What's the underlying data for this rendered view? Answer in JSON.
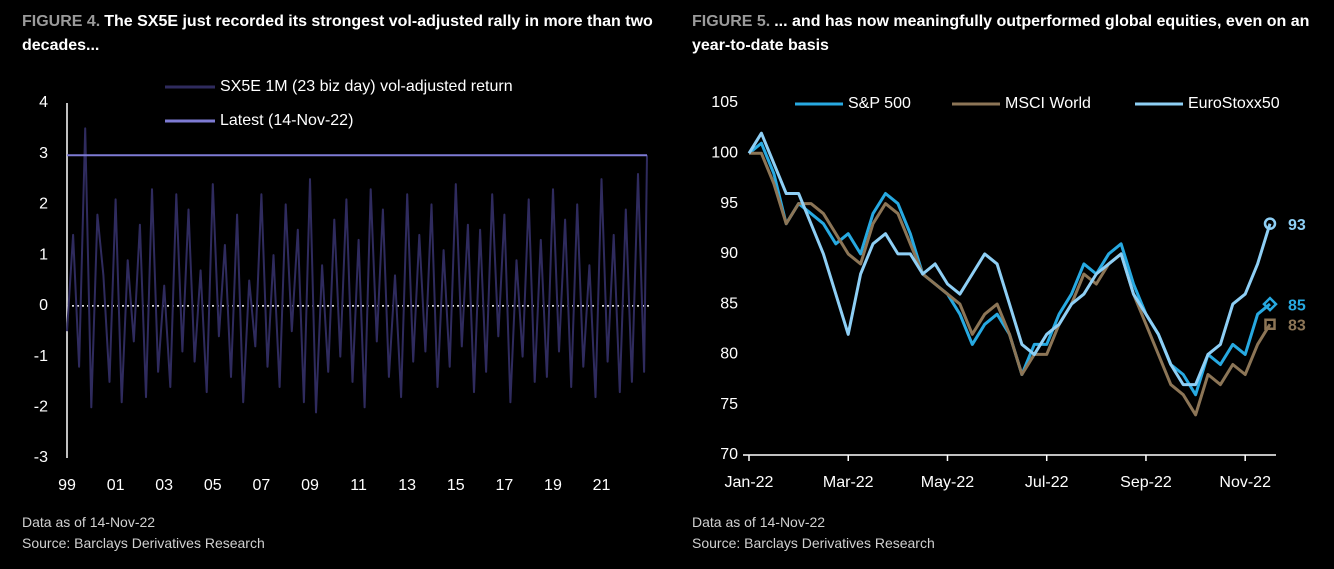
{
  "chart_data": [
    {
      "type": "line",
      "figure_label": "FIGURE 4.",
      "title": "The SX5E just recorded its strongest vol-adjusted rally in more than two decades...",
      "notes": [
        "Data as of 14-Nov-22",
        "Source: Barclays Derivatives Research"
      ],
      "x": [
        1999,
        1999.25,
        1999.5,
        1999.75,
        2000,
        2000.25,
        2000.5,
        2000.75,
        2001,
        2001.25,
        2001.5,
        2001.75,
        2002,
        2002.25,
        2002.5,
        2002.75,
        2003,
        2003.25,
        2003.5,
        2003.75,
        2004,
        2004.25,
        2004.5,
        2004.75,
        2005,
        2005.25,
        2005.5,
        2005.75,
        2006,
        2006.25,
        2006.5,
        2006.75,
        2007,
        2007.25,
        2007.5,
        2007.75,
        2008,
        2008.25,
        2008.5,
        2008.75,
        2009,
        2009.25,
        2009.5,
        2009.75,
        2010,
        2010.25,
        2010.5,
        2010.75,
        2011,
        2011.25,
        2011.5,
        2011.75,
        2012,
        2012.25,
        2012.5,
        2012.75,
        2013,
        2013.25,
        2013.5,
        2013.75,
        2014,
        2014.25,
        2014.5,
        2014.75,
        2015,
        2015.25,
        2015.5,
        2015.75,
        2016,
        2016.25,
        2016.5,
        2016.75,
        2017,
        2017.25,
        2017.5,
        2017.75,
        2018,
        2018.25,
        2018.5,
        2018.75,
        2019,
        2019.25,
        2019.5,
        2019.75,
        2020,
        2020.25,
        2020.5,
        2020.75,
        2021,
        2021.25,
        2021.5,
        2021.75,
        2022,
        2022.25,
        2022.5,
        2022.75,
        2022.87
      ],
      "series": [
        {
          "name": "SX5E 1M (23 biz day) vol-adjusted return",
          "color": "#2f2b5e",
          "values": [
            -0.5,
            1.4,
            -1.2,
            3.5,
            -2.0,
            1.8,
            0.6,
            -1.5,
            2.1,
            -1.9,
            0.9,
            -0.7,
            1.6,
            -1.8,
            2.3,
            -1.3,
            0.4,
            -1.6,
            2.2,
            -0.9,
            1.9,
            -1.1,
            0.7,
            -1.7,
            2.4,
            -0.6,
            1.2,
            -1.4,
            1.8,
            -1.9,
            0.5,
            -0.8,
            2.2,
            -1.2,
            1.0,
            -1.6,
            2.0,
            -0.5,
            1.5,
            -1.9,
            2.5,
            -2.1,
            0.8,
            -1.3,
            1.7,
            -1.0,
            2.1,
            -1.5,
            1.3,
            -2.0,
            2.3,
            -0.7,
            1.9,
            -1.4,
            0.6,
            -1.8,
            2.2,
            -1.1,
            1.4,
            -0.9,
            2.0,
            -1.6,
            1.1,
            -1.2,
            2.4,
            -0.8,
            1.6,
            -1.7,
            1.5,
            -1.3,
            2.2,
            -0.6,
            1.8,
            -1.9,
            0.9,
            -1.0,
            2.1,
            -1.5,
            1.3,
            -1.4,
            2.3,
            -0.9,
            1.7,
            -1.6,
            2.0,
            -1.2,
            0.8,
            -1.8,
            2.5,
            -1.1,
            1.4,
            -1.7,
            1.9,
            -1.5,
            2.6,
            -1.3,
            2.97
          ]
        },
        {
          "name": "Latest (14-Nov-22)",
          "color": "#7e7bd4",
          "x": [
            1999,
            2022.87
          ],
          "values": [
            2.97,
            2.97
          ]
        }
      ],
      "xlim": [
        1999,
        2023.2
      ],
      "xticks": [
        {
          "value": 1999,
          "label": "99"
        },
        {
          "value": 2001,
          "label": "01"
        },
        {
          "value": 2003,
          "label": "03"
        },
        {
          "value": 2005,
          "label": "05"
        },
        {
          "value": 2007,
          "label": "07"
        },
        {
          "value": 2009,
          "label": "09"
        },
        {
          "value": 2011,
          "label": "11"
        },
        {
          "value": 2013,
          "label": "13"
        },
        {
          "value": 2015,
          "label": "15"
        },
        {
          "value": 2017,
          "label": "17"
        },
        {
          "value": 2019,
          "label": "19"
        },
        {
          "value": 2021,
          "label": "21"
        }
      ],
      "ylim": [
        -3,
        4
      ],
      "yticks": [
        -3,
        -2,
        -1,
        0,
        1,
        2,
        3,
        4
      ],
      "zero_line": true,
      "legend": "top"
    },
    {
      "type": "line",
      "figure_label": "FIGURE 5.",
      "title": "... and has now meaningfully outperformed global equities, even on an year-to-date basis",
      "notes": [
        "Data as of 14-Nov-22",
        "Source: Barclays Derivatives Research"
      ],
      "categories": [
        "Jan-22",
        null,
        null,
        null,
        null,
        null,
        null,
        null,
        "Mar-22",
        null,
        null,
        null,
        null,
        null,
        null,
        null,
        "May-22",
        null,
        null,
        null,
        null,
        null,
        null,
        null,
        "Jul-22",
        null,
        null,
        null,
        null,
        null,
        null,
        null,
        "Sep-22",
        null,
        null,
        null,
        null,
        null,
        null,
        null,
        "Nov-22",
        null,
        null
      ],
      "series": [
        {
          "name": "S&P 500",
          "color": "#27a9e1",
          "marker": "diamond",
          "values": [
            100,
            101,
            98,
            93,
            95,
            94,
            93,
            91,
            92,
            90,
            94,
            96,
            95,
            92,
            88,
            87,
            86,
            84,
            81,
            83,
            84,
            82,
            78,
            81,
            81,
            84,
            86,
            89,
            88,
            90,
            91,
            87,
            84,
            82,
            79,
            78,
            76,
            80,
            79,
            81,
            80,
            84,
            85
          ]
        },
        {
          "name": "MSCI World",
          "color": "#8c7556",
          "marker": "square",
          "values": [
            100,
            100,
            97,
            93,
            95,
            95,
            94,
            92,
            90,
            89,
            93,
            95,
            94,
            91,
            88,
            87,
            86,
            85,
            82,
            84,
            85,
            82,
            78,
            80,
            80,
            83,
            85,
            88,
            87,
            89,
            90,
            86,
            83,
            80,
            77,
            76,
            74,
            78,
            77,
            79,
            78,
            81,
            83
          ]
        },
        {
          "name": "EuroStoxx50",
          "color": "#8ecff5",
          "marker": "circle",
          "values": [
            100,
            102,
            99,
            96,
            96,
            93,
            90,
            86,
            82,
            88,
            91,
            92,
            90,
            90,
            88,
            89,
            87,
            86,
            88,
            90,
            89,
            85,
            81,
            80,
            82,
            83,
            85,
            86,
            88,
            89,
            90,
            86,
            84,
            82,
            79,
            77,
            77,
            80,
            81,
            85,
            86,
            89,
            93
          ]
        }
      ],
      "ylim": [
        70,
        105
      ],
      "yticks": [
        70,
        75,
        80,
        85,
        90,
        95,
        100,
        105
      ],
      "end_labels": true,
      "legend": "top"
    }
  ]
}
